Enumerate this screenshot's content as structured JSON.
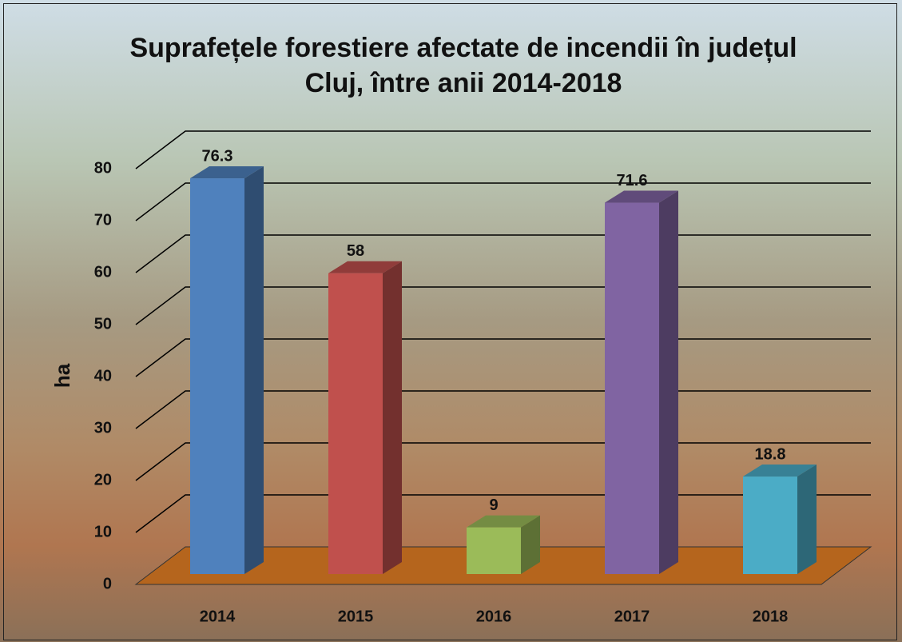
{
  "chart_data": {
    "type": "bar3d",
    "title": "Suprafețele forestiere afectate de incendii în județul Cluj, între anii 2014-2018",
    "y_label": "ha",
    "categories": [
      "2014",
      "2015",
      "2016",
      "2017",
      "2018"
    ],
    "values": [
      76.3,
      58,
      9,
      71.6,
      18.8
    ],
    "colors": [
      "#4f81bd",
      "#c0504d",
      "#9bbb59",
      "#8064a2",
      "#4bacc6"
    ],
    "floor_color": "#b5651d",
    "ylim": [
      0,
      80
    ],
    "yticks": [
      0,
      10,
      20,
      30,
      40,
      50,
      60,
      70,
      80
    ],
    "grid": true
  }
}
